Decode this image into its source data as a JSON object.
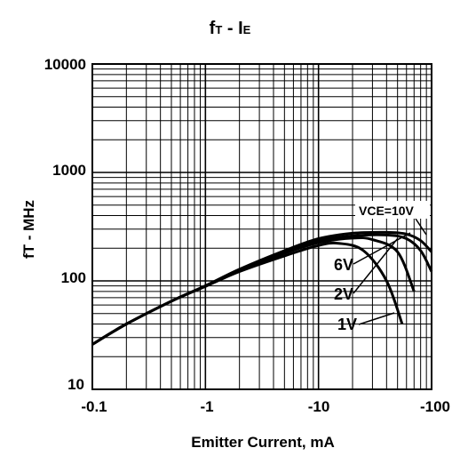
{
  "chart_data": {
    "type": "line",
    "title": "fT - IE",
    "title_parts": {
      "f": "f",
      "T": "T",
      "sep": " - I",
      "E": "E"
    },
    "xlabel": "Emitter Current, mA",
    "ylabel": "fT - MHz",
    "x_scale": "log",
    "y_scale": "log",
    "x_ticks": [
      "-0.1",
      "-1",
      "-10",
      "-100"
    ],
    "y_ticks": [
      "10",
      "100",
      "1000",
      "10000"
    ],
    "xlim": [
      0.1,
      100
    ],
    "ylim": [
      10,
      10000
    ],
    "grid": true,
    "series": [
      {
        "name": "VCE=10V",
        "x": [
          0.1,
          0.2,
          0.5,
          1,
          2,
          5,
          10,
          20,
          40,
          60,
          80,
          100
        ],
        "y": [
          26,
          40,
          65,
          90,
          128,
          190,
          245,
          275,
          280,
          270,
          235,
          185
        ]
      },
      {
        "name": "6V",
        "x": [
          0.1,
          0.2,
          0.5,
          1,
          2,
          5,
          10,
          20,
          40,
          60,
          80,
          100
        ],
        "y": [
          26,
          40,
          65,
          90,
          127,
          185,
          235,
          260,
          265,
          245,
          190,
          122
        ]
      },
      {
        "name": "2V",
        "x": [
          0.1,
          0.2,
          0.5,
          1,
          2,
          5,
          10,
          20,
          30,
          50,
          70
        ],
        "y": [
          26,
          40,
          65,
          90,
          125,
          180,
          225,
          248,
          240,
          185,
          80
        ]
      },
      {
        "name": "1V",
        "x": [
          0.1,
          0.2,
          0.5,
          1,
          2,
          5,
          10,
          15,
          25,
          40,
          55
        ],
        "y": [
          26,
          40,
          65,
          89,
          122,
          170,
          212,
          222,
          190,
          100,
          40
        ]
      }
    ],
    "annotations": {
      "vce10": "VCE=10V",
      "v6": "6V",
      "v2": "2V",
      "v1": "1V"
    },
    "colors": {
      "line": "#000000",
      "grid": "#000000",
      "background": "#ffffff"
    }
  }
}
